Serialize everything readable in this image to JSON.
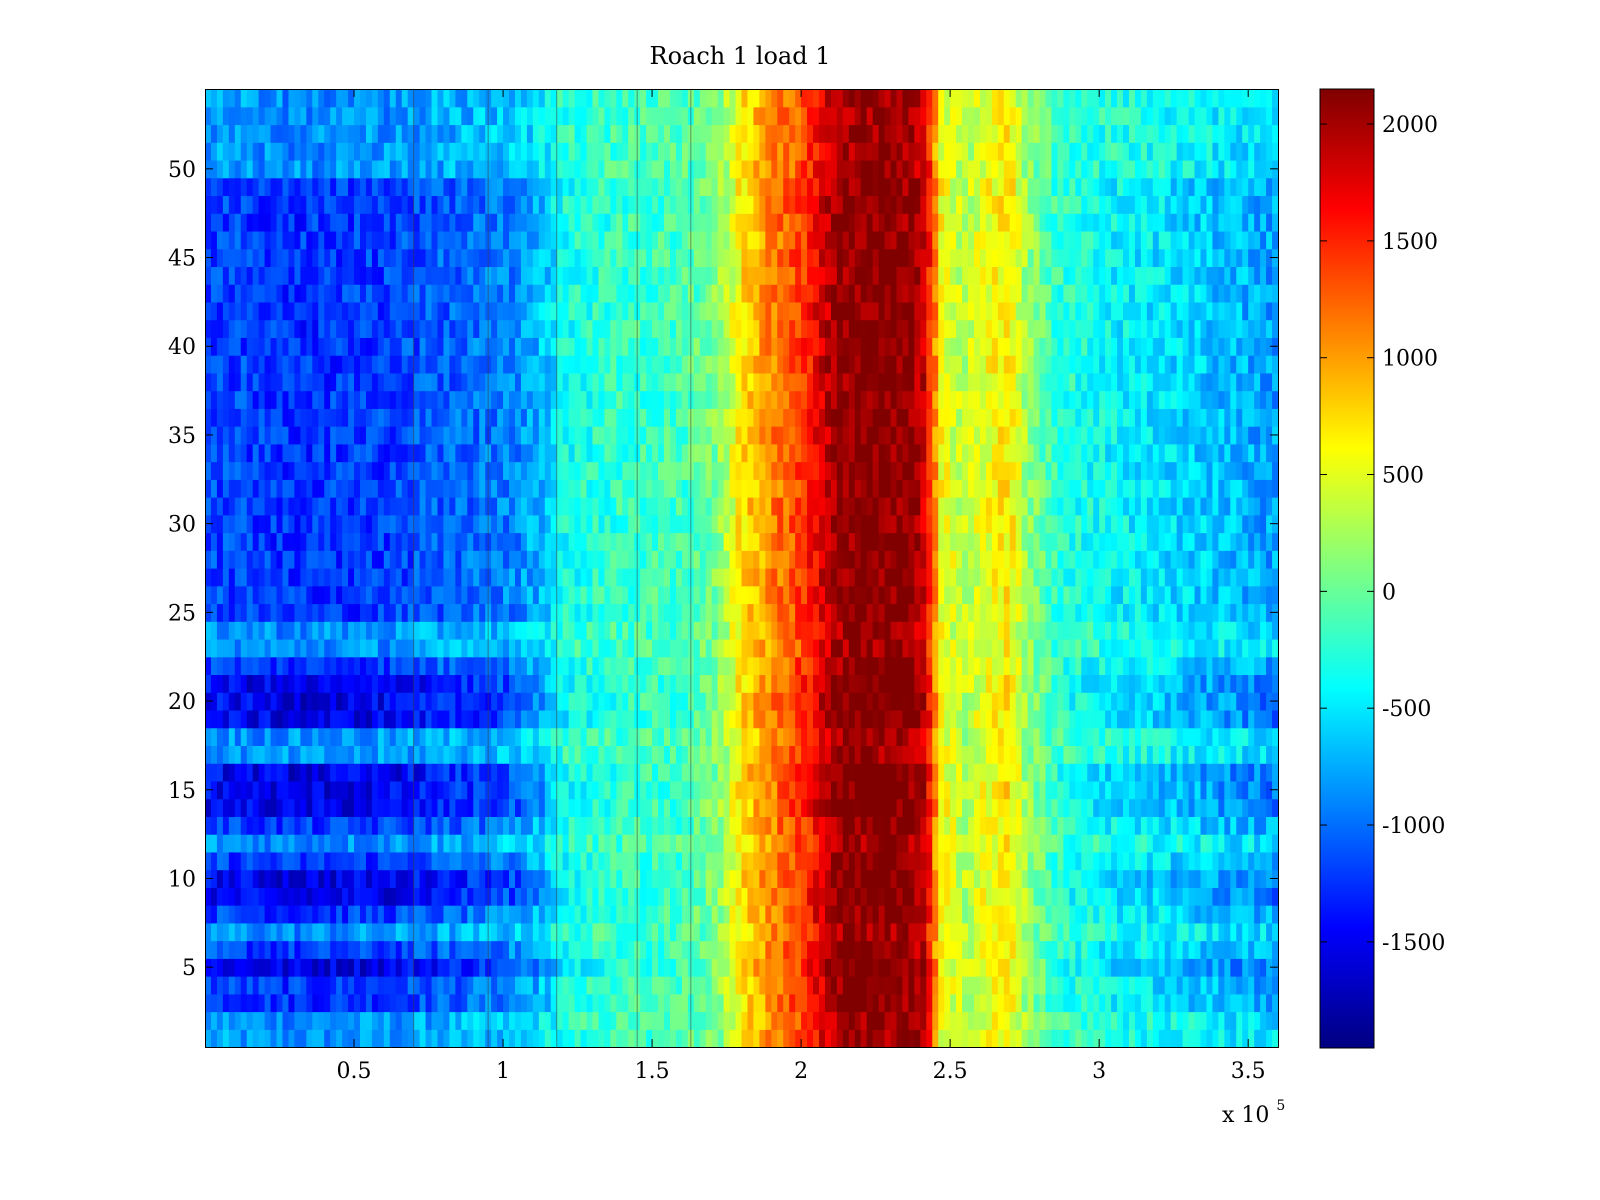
{
  "chart_data": {
    "type": "heatmap",
    "title": "Roach 1 load 1",
    "xlabel": "",
    "ylabel": "",
    "x_multiplier_label": "x 10",
    "x_multiplier_exponent": "5",
    "xlim": [
      0,
      3.6
    ],
    "ylim": [
      0.5,
      54.5
    ],
    "xticks": [
      0.5,
      1,
      1.5,
      2,
      2.5,
      3,
      3.5
    ],
    "xtick_labels": [
      "0.5",
      "1",
      "1.5",
      "2",
      "2.5",
      "3",
      "3.5"
    ],
    "yticks": [
      5,
      10,
      15,
      20,
      25,
      30,
      35,
      40,
      45,
      50
    ],
    "ytick_labels": [
      "5",
      "10",
      "15",
      "20",
      "25",
      "30",
      "35",
      "40",
      "45",
      "50"
    ],
    "rows": 54,
    "colorbar": {
      "colormap": "jet",
      "range": [
        -1950,
        2150
      ],
      "ticks": [
        -1500,
        -1000,
        -500,
        0,
        500,
        1000,
        1500,
        2000
      ],
      "tick_labels": [
        "-1500",
        "-1000",
        "-500",
        "0",
        "500",
        "1000",
        "1500",
        "2000"
      ]
    },
    "column_profile": {
      "x": [
        0.0,
        0.3,
        0.6,
        0.9,
        1.05,
        1.15,
        1.2,
        1.4,
        1.6,
        1.72,
        1.8,
        1.9,
        2.0,
        2.07,
        2.12,
        2.2,
        2.3,
        2.38,
        2.42,
        2.47,
        2.55,
        2.62,
        2.7,
        2.75,
        2.85,
        3.0,
        3.2,
        3.4,
        3.6
      ],
      "value": [
        -1150,
        -1250,
        -1200,
        -1000,
        -900,
        -600,
        -350,
        -200,
        -150,
        100,
        700,
        1100,
        1400,
        1800,
        2050,
        2150,
        2150,
        2050,
        1800,
        600,
        300,
        550,
        700,
        250,
        -200,
        -400,
        -500,
        -650,
        -800
      ]
    },
    "row_modulation": {
      "rows_dark": [
        5,
        9,
        10,
        14,
        15,
        16,
        19,
        20,
        21
      ],
      "rows_light": [
        1,
        2,
        7,
        12,
        17,
        18,
        23,
        24,
        50,
        51,
        52,
        53,
        54
      ]
    },
    "vertical_lines_x": [
      0.7,
      0.95,
      1.18,
      1.45,
      1.63
    ]
  }
}
